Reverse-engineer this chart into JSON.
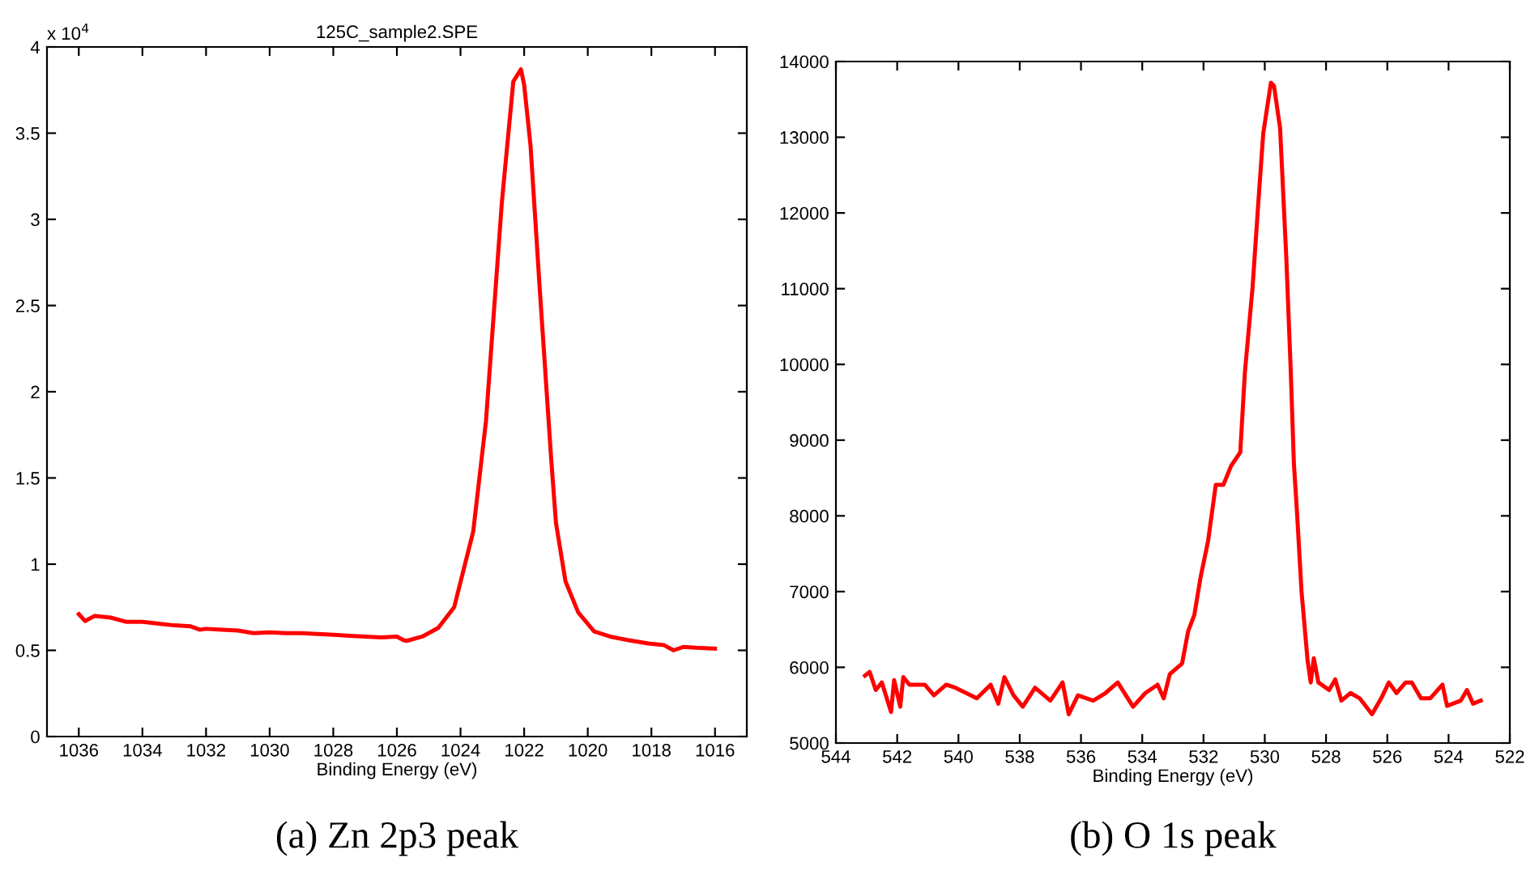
{
  "chart_data": [
    {
      "type": "line",
      "title": "125C_sample2.SPE",
      "xlabel": "Binding Energy (eV)",
      "annotations": [
        "x 10$^{4}$",
        "(a) Zn 2p3 peak"
      ],
      "xlim": [
        1037,
        1015
      ],
      "xticks": [
        1036,
        1034,
        1032,
        1030,
        1028,
        1026,
        1024,
        1022,
        1020,
        1018,
        1016
      ],
      "ylim": [
        0,
        4
      ],
      "yticks": [
        0,
        0.5,
        1,
        1.5,
        2,
        2.5,
        3,
        3.5,
        4
      ],
      "grid": false,
      "legend": false,
      "series": [
        {
          "color": "#ff0000",
          "x": [
            1036,
            1035.8,
            1035.5,
            1035,
            1034.5,
            1034,
            1033.5,
            1033,
            1032.5,
            1032.2,
            1032,
            1031.5,
            1031,
            1030.5,
            1030,
            1029.5,
            1029,
            1028.5,
            1028,
            1027.5,
            1027,
            1026.5,
            1026,
            1025.8,
            1025.7,
            1025.2,
            1024.7,
            1024.2,
            1023.9,
            1023.6,
            1023.2,
            1022.7,
            1022.34,
            1022.1,
            1022.0,
            1021.8,
            1021.5,
            1021.15,
            1021.0,
            1020.7,
            1020.3,
            1019.8,
            1019.3,
            1018.75,
            1018.1,
            1017.6,
            1017.3,
            1017,
            1016.6,
            1016
          ],
          "values": [
            0.71,
            0.67,
            0.7,
            0.69,
            0.665,
            0.665,
            0.655,
            0.645,
            0.64,
            0.62,
            0.625,
            0.62,
            0.615,
            0.6,
            0.605,
            0.6,
            0.6,
            0.595,
            0.59,
            0.585,
            0.58,
            0.575,
            0.58,
            0.56,
            0.555,
            0.58,
            0.63,
            0.75,
            0.97,
            1.19,
            1.83,
            3.1,
            3.8,
            3.87,
            3.78,
            3.43,
            2.57,
            1.61,
            1.24,
            0.9,
            0.72,
            0.61,
            0.58,
            0.56,
            0.54,
            0.53,
            0.5,
            0.52,
            0.515,
            0.51
          ]
        }
      ]
    },
    {
      "type": "line",
      "xlabel": "Binding Energy (eV)",
      "annotations": [
        "(b) O 1s peak"
      ],
      "xlim": [
        544,
        522
      ],
      "xticks": [
        544,
        542,
        540,
        538,
        536,
        534,
        532,
        530,
        528,
        526,
        524,
        522
      ],
      "ylim": [
        5000,
        14000
      ],
      "yticks": [
        5000,
        6000,
        7000,
        8000,
        9000,
        10000,
        11000,
        12000,
        13000,
        14000
      ],
      "grid": false,
      "legend": false,
      "series": [
        {
          "color": "#ff0000",
          "x": [
            543.05,
            542.9,
            542.7,
            542.5,
            542.2,
            542.1,
            541.9,
            541.8,
            541.6,
            541.1,
            540.8,
            540.4,
            540.1,
            539.4,
            538.95,
            538.7,
            538.5,
            538.2,
            537.9,
            537.5,
            537.0,
            536.6,
            536.4,
            536.1,
            535.6,
            535.2,
            534.8,
            534.3,
            533.9,
            533.5,
            533.3,
            533.1,
            532.7,
            532.5,
            532.3,
            532.1,
            531.85,
            531.6,
            531.35,
            531.1,
            530.8,
            530.65,
            530.4,
            530.2,
            530.05,
            529.8,
            529.7,
            529.5,
            529.3,
            529.15,
            529.05,
            528.95,
            528.8,
            528.6,
            528.5,
            528.4,
            528.25,
            527.9,
            527.7,
            527.5,
            527.2,
            526.9,
            526.5,
            526.2,
            525.95,
            525.7,
            525.4,
            525.2,
            524.9,
            524.6,
            524.2,
            524.05,
            523.6,
            523.4,
            523.2,
            522.95
          ],
          "values": [
            5890,
            5940,
            5700,
            5800,
            5410,
            5830,
            5480,
            5870,
            5770,
            5770,
            5630,
            5770,
            5730,
            5590,
            5770,
            5520,
            5870,
            5630,
            5480,
            5730,
            5560,
            5800,
            5380,
            5630,
            5560,
            5660,
            5800,
            5480,
            5660,
            5770,
            5590,
            5910,
            6050,
            6480,
            6690,
            7180,
            7670,
            8410,
            8410,
            8660,
            8840,
            9890,
            11010,
            12200,
            13050,
            13720,
            13680,
            13120,
            11430,
            9890,
            8690,
            8060,
            7000,
            6080,
            5800,
            6120,
            5800,
            5700,
            5840,
            5560,
            5660,
            5590,
            5380,
            5590,
            5800,
            5660,
            5800,
            5800,
            5590,
            5590,
            5770,
            5490,
            5560,
            5700,
            5520,
            5560
          ]
        }
      ]
    }
  ]
}
